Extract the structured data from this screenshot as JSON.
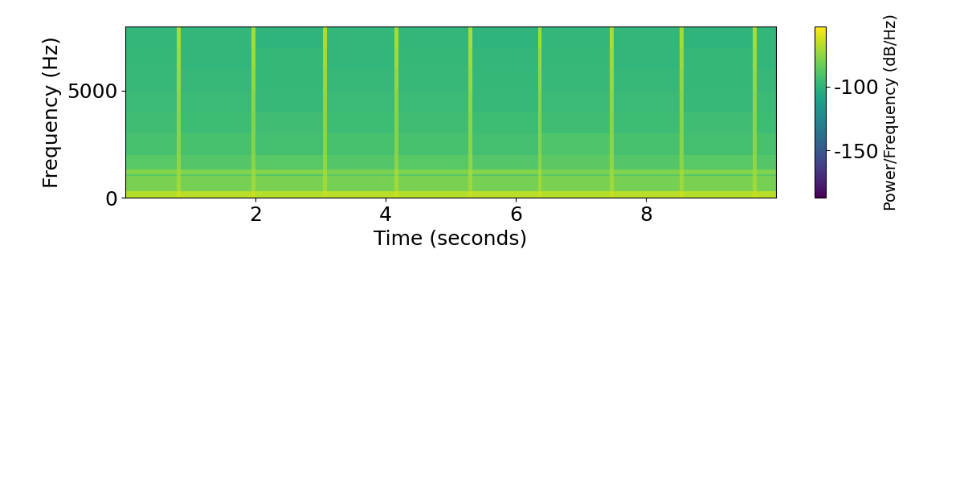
{
  "chart_data": {
    "type": "heatmap",
    "x_label": "Time (seconds)",
    "y_label": "Frequency (Hz)",
    "xlim": [
      0,
      10
    ],
    "xticks": [
      2,
      4,
      6,
      8
    ],
    "ylim": [
      0,
      8000
    ],
    "yticks": [
      0,
      5000
    ],
    "x_edges": [
      0,
      0.79,
      0.85,
      1.94,
      2.0,
      3.04,
      3.1,
      4.14,
      4.2,
      5.27,
      5.33,
      6.34,
      6.4,
      7.44,
      7.5,
      8.52,
      8.58,
      9.64,
      9.7,
      10
    ],
    "y_edges": [
      0,
      300,
      1000,
      1100,
      1300,
      2000,
      3000,
      4000,
      5000,
      6000,
      7000,
      8000
    ],
    "cells": [
      [
        -68,
        -64,
        -67,
        -64,
        -68,
        -65,
        -67,
        -64,
        -68,
        -65,
        -67,
        -64,
        -68,
        -65,
        -67,
        -64,
        -68,
        -65,
        -67
      ],
      [
        -80,
        -72,
        -81,
        -73,
        -80,
        -72,
        -81,
        -72,
        -80,
        -73,
        -81,
        -72,
        -80,
        -72,
        -81,
        -73,
        -80,
        -72,
        -81
      ],
      [
        -88,
        -74,
        -88,
        -75,
        -89,
        -74,
        -88,
        -75,
        -88,
        -74,
        -89,
        -75,
        -88,
        -74,
        -88,
        -75,
        -89,
        -74,
        -88
      ],
      [
        -78,
        -72,
        -79,
        -73,
        -78,
        -72,
        -80,
        -72,
        -79,
        -73,
        -78,
        -72,
        -80,
        -73,
        -79,
        -72,
        -78,
        -73,
        -79
      ],
      [
        -88,
        -76,
        -89,
        -77,
        -88,
        -76,
        -89,
        -77,
        -88,
        -76,
        -89,
        -77,
        -87,
        -76,
        -89,
        -77,
        -88,
        -76,
        -89
      ],
      [
        -92,
        -77,
        -92,
        -78,
        -93,
        -77,
        -92,
        -78,
        -92,
        -77,
        -93,
        -78,
        -90,
        -77,
        -92,
        -78,
        -93,
        -77,
        -92
      ],
      [
        -94,
        -77,
        -95,
        -78,
        -94,
        -77,
        -95,
        -78,
        -94,
        -77,
        -95,
        -78,
        -94,
        -77,
        -95,
        -78,
        -94,
        -77,
        -95
      ],
      [
        -96,
        -76,
        -96,
        -77,
        -97,
        -76,
        -96,
        -77,
        -96,
        -76,
        -97,
        -77,
        -96,
        -76,
        -96,
        -77,
        -97,
        -76,
        -96
      ],
      [
        -97,
        -74,
        -97,
        -75,
        -98,
        -74,
        -97,
        -75,
        -97,
        -74,
        -98,
        -75,
        -97,
        -74,
        -97,
        -75,
        -98,
        -74,
        -97
      ],
      [
        -98,
        -72,
        -99,
        -73,
        -98,
        -72,
        -99,
        -73,
        -98,
        -72,
        -99,
        -73,
        -98,
        -72,
        -99,
        -73,
        -98,
        -72,
        -99
      ],
      [
        -99,
        -70,
        -99,
        -71,
        -100,
        -70,
        -99,
        -71,
        -99,
        -70,
        -100,
        -71,
        -99,
        -70,
        -99,
        -71,
        -100,
        -70,
        -99
      ]
    ],
    "color_range": [
      -187,
      -53
    ],
    "colorbar_ticks": [
      -150,
      -100
    ],
    "colorbar_label": "Power/Frequency (dB/Hz)"
  }
}
